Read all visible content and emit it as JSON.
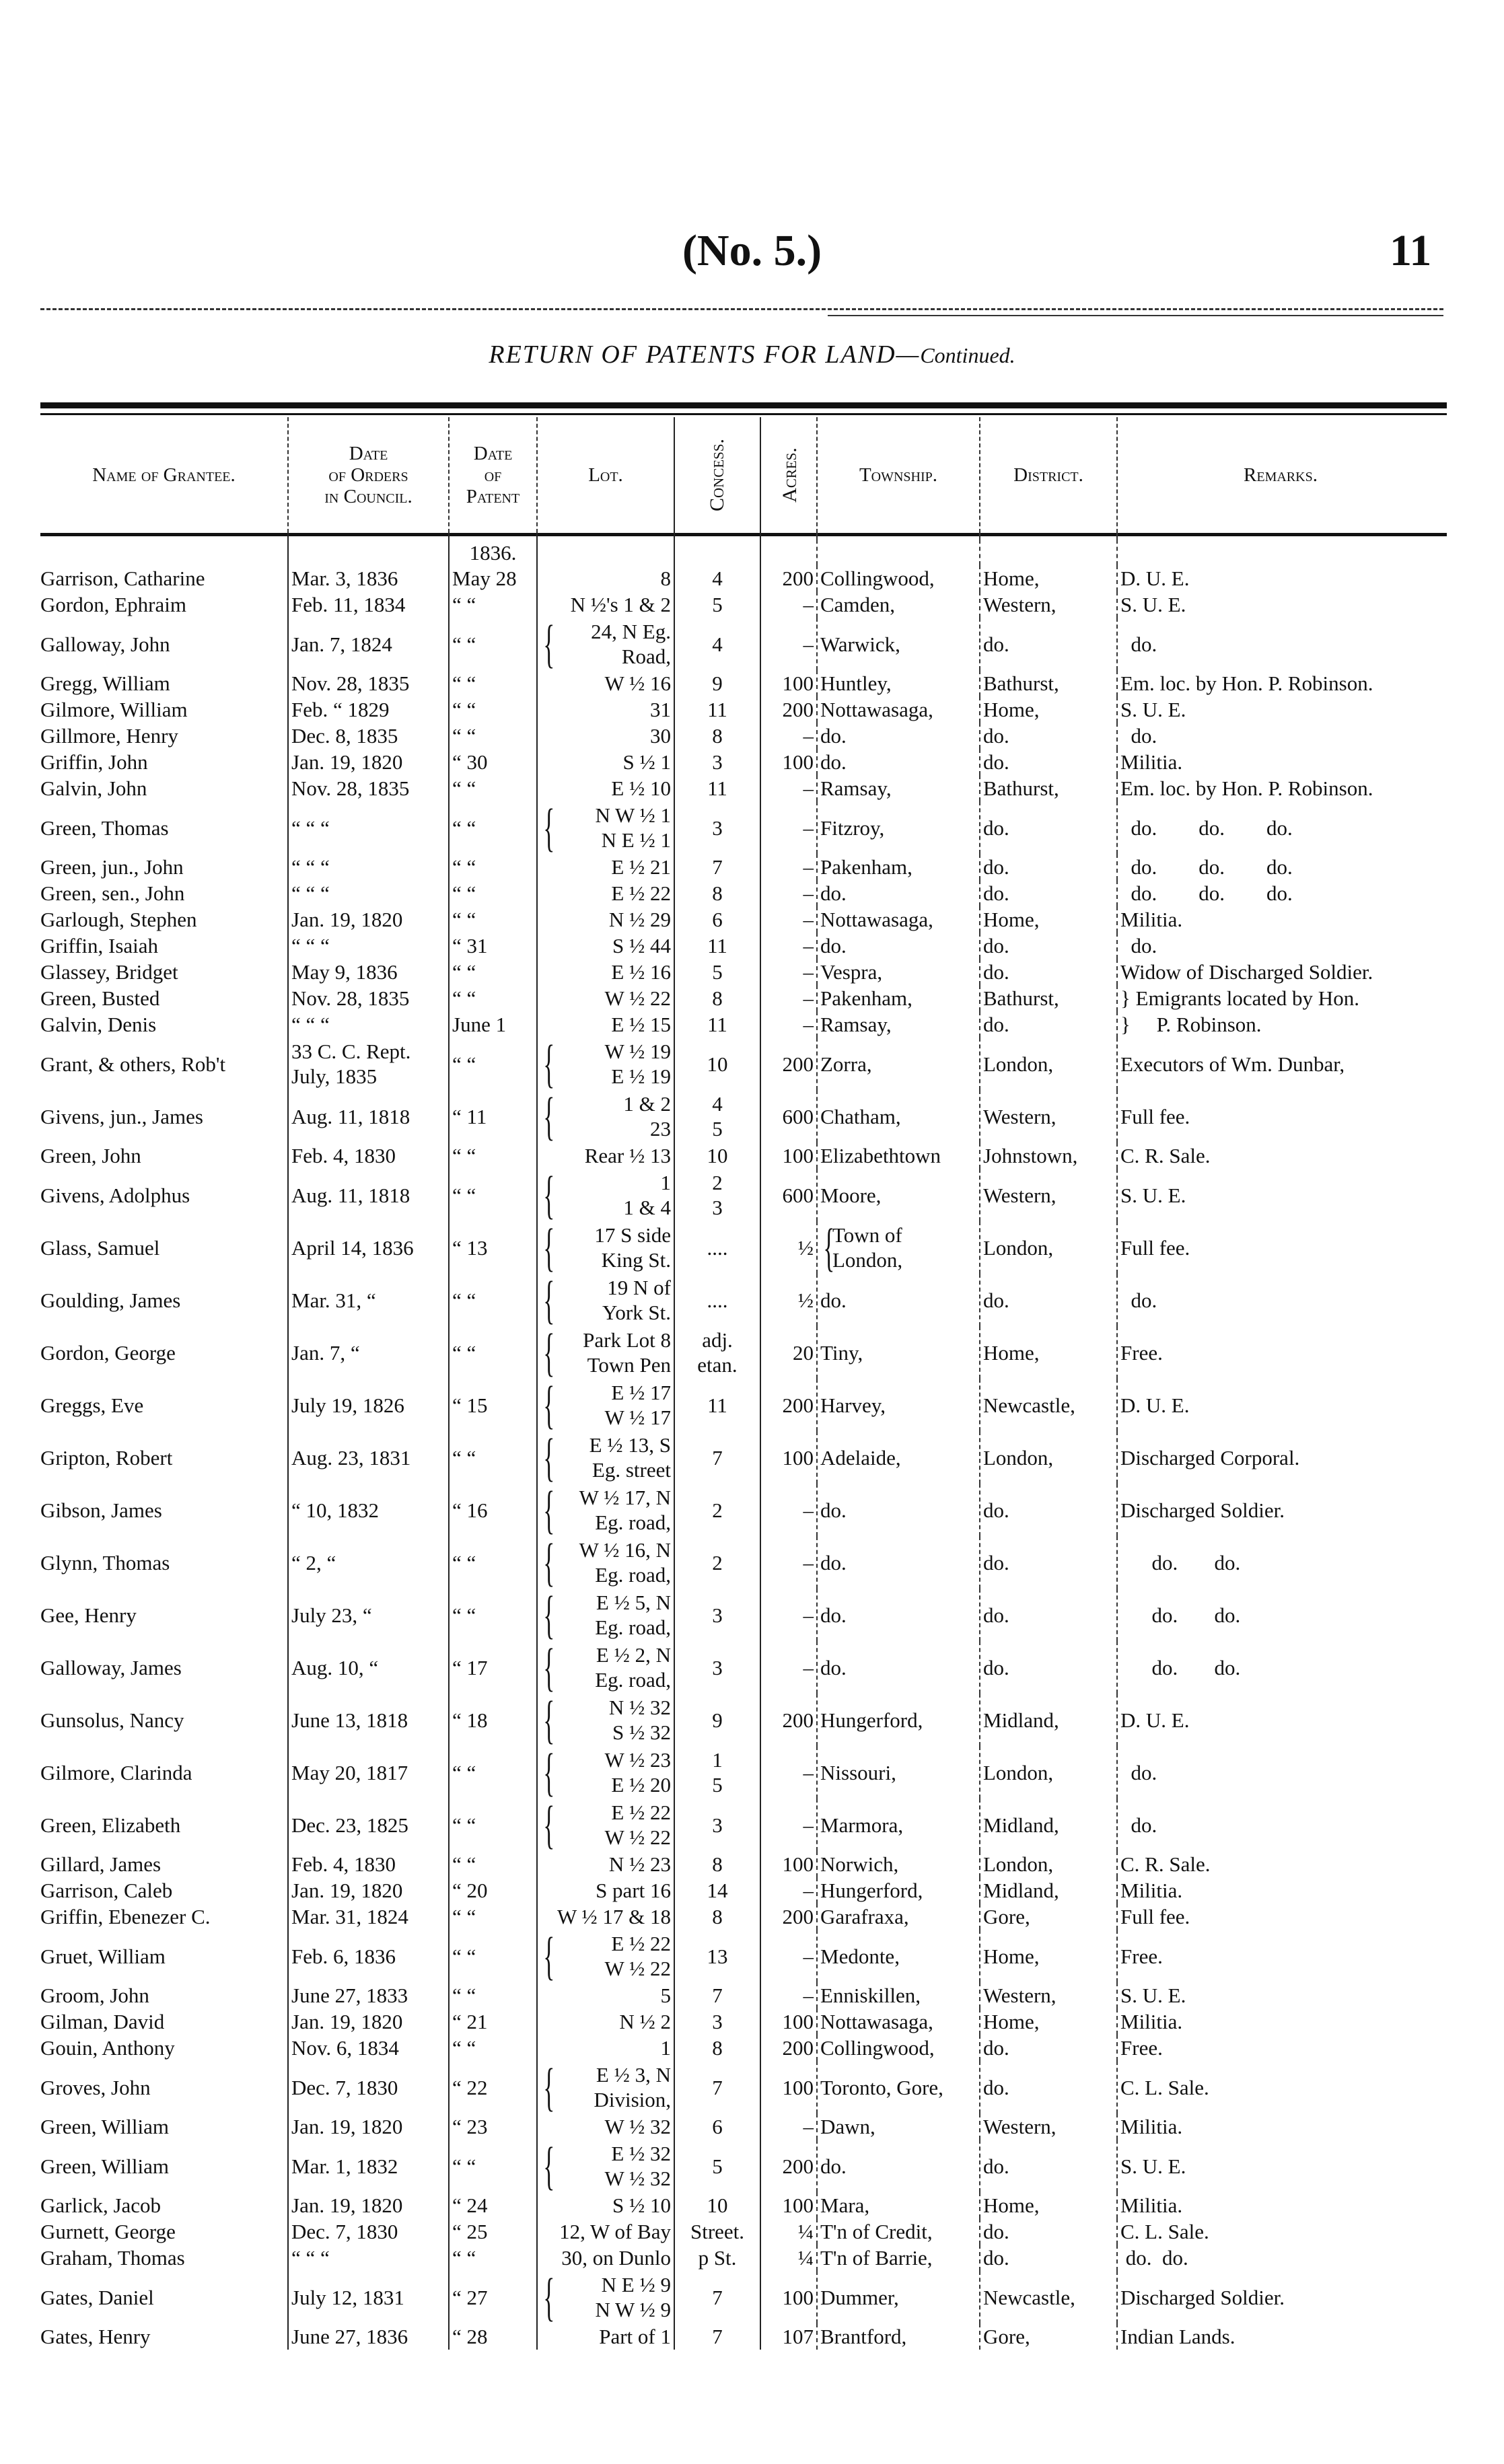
{
  "page": {
    "number_label": "(No. 5.)",
    "page_number": "11"
  },
  "title": {
    "main": "RETURN OF PATENTS FOR LAND—",
    "continued": "Continued."
  },
  "table": {
    "headers": {
      "name": "Name of Grantee.",
      "order": [
        "Date",
        "of Orders",
        "in Council."
      ],
      "patent": [
        "Date",
        "of",
        "Patent"
      ],
      "lot": "Lot.",
      "concession": "Concess.",
      "acres": "Acres.",
      "township": "Township.",
      "district": "District.",
      "remarks": "Remarks."
    },
    "patent_year": "1836.",
    "rows": [
      {
        "name": "Garrison, Catharine",
        "order": [
          "Mar.  3, 1836"
        ],
        "patent": "May 28",
        "lot": [
          "8"
        ],
        "conc": [
          "4"
        ],
        "acres": "200",
        "township": [
          "Collingwood,"
        ],
        "district": "Home,",
        "remarks": "D. U. E."
      },
      {
        "name": "Gordon, Ephraim",
        "order": [
          "Feb. 11, 1834"
        ],
        "patent": "“   “",
        "lot": [
          "N ½'s 1 & 2"
        ],
        "conc": [
          "5"
        ],
        "acres": "–",
        "township": [
          "Camden,"
        ],
        "district": "Western,",
        "remarks": "S. U. E."
      },
      {
        "name": "Galloway, John",
        "order": [
          "Jan.  7, 1824"
        ],
        "patent": "“   “",
        "lot": [
          "24, N Eg.",
          "Road,"
        ],
        "conc": [
          "4"
        ],
        "acres": "–",
        "township": [
          "Warwick,"
        ],
        "district": "do.",
        "remarks": "  do."
      },
      {
        "name": "Gregg, William",
        "order": [
          "Nov. 28, 1835"
        ],
        "patent": "“   “",
        "lot": [
          "W ½ 16"
        ],
        "conc": [
          "9"
        ],
        "acres": "100",
        "township": [
          "Huntley,"
        ],
        "district": "Bathurst,",
        "remarks": "Em. loc. by Hon. P. Robinson."
      },
      {
        "name": "Gilmore, William",
        "order": [
          "Feb.  “  1829"
        ],
        "patent": "“   “",
        "lot": [
          "31"
        ],
        "conc": [
          "11"
        ],
        "acres": "200",
        "township": [
          "Nottawasaga,"
        ],
        "district": "Home,",
        "remarks": "S. U. E."
      },
      {
        "name": "Gillmore, Henry",
        "order": [
          "Dec.  8, 1835"
        ],
        "patent": "“   “",
        "lot": [
          "30"
        ],
        "conc": [
          "8"
        ],
        "acres": "–",
        "township": [
          "do."
        ],
        "district": "do.",
        "remarks": "  do."
      },
      {
        "name": "Griffin, John",
        "order": [
          "Jan. 19, 1820"
        ],
        "patent": "“  30",
        "lot": [
          "S ½  1"
        ],
        "conc": [
          "3"
        ],
        "acres": "100",
        "township": [
          "do."
        ],
        "district": "do.",
        "remarks": "Militia."
      },
      {
        "name": "Galvin, John",
        "order": [
          "Nov. 28, 1835"
        ],
        "patent": "“   “",
        "lot": [
          "E ½ 10"
        ],
        "conc": [
          "11"
        ],
        "acres": "–",
        "township": [
          "Ramsay,"
        ],
        "district": "Bathurst,",
        "remarks": "Em. loc. by Hon. P. Robinson."
      },
      {
        "name": "Green, Thomas",
        "order": [
          "“   “   “"
        ],
        "patent": "“   “",
        "lot": [
          "N W ½ 1",
          "N E ½ 1"
        ],
        "conc": [
          "3"
        ],
        "acres": "–",
        "township": [
          "Fitzroy,"
        ],
        "district": "do.",
        "remarks": "  do.        do.        do."
      },
      {
        "name": "Green, jun., John",
        "order": [
          "“   “   “"
        ],
        "patent": "“   “",
        "lot": [
          "E ½ 21"
        ],
        "conc": [
          "7"
        ],
        "acres": "–",
        "township": [
          "Pakenham,"
        ],
        "district": "do.",
        "remarks": "  do.        do.        do."
      },
      {
        "name": "Green, sen., John",
        "order": [
          "“   “   “"
        ],
        "patent": "“   “",
        "lot": [
          "E ½ 22"
        ],
        "conc": [
          "8"
        ],
        "acres": "–",
        "township": [
          "do."
        ],
        "district": "do.",
        "remarks": "  do.        do.        do."
      },
      {
        "name": "Garlough, Stephen",
        "order": [
          "Jan. 19, 1820"
        ],
        "patent": "“   “",
        "lot": [
          "N ½ 29"
        ],
        "conc": [
          "6"
        ],
        "acres": "–",
        "township": [
          "Nottawasaga,"
        ],
        "district": "Home,",
        "remarks": "Militia."
      },
      {
        "name": "Griffin, Isaiah",
        "order": [
          "“   “   “"
        ],
        "patent": "“  31",
        "lot": [
          "S ½ 44"
        ],
        "conc": [
          "11"
        ],
        "acres": "–",
        "township": [
          "do."
        ],
        "district": "do.",
        "remarks": "  do."
      },
      {
        "name": "Glassey, Bridget",
        "order": [
          "May  9, 1836"
        ],
        "patent": "“   “",
        "lot": [
          "E ½ 16"
        ],
        "conc": [
          "5"
        ],
        "acres": "–",
        "township": [
          "Vespra,"
        ],
        "district": "do.",
        "remarks": "Widow of Discharged Soldier."
      },
      {
        "name": "Green, Busted",
        "order": [
          "Nov. 28, 1835"
        ],
        "patent": "“   “",
        "lot": [
          "W ½ 22"
        ],
        "conc": [
          "8"
        ],
        "acres": "–",
        "township": [
          "Pakenham,"
        ],
        "district": "Bathurst,",
        "remarks": "} Emigrants located by Hon."
      },
      {
        "name": "Galvin, Denis",
        "order": [
          "“   “   “"
        ],
        "patent": "June  1",
        "lot": [
          "E ½ 15"
        ],
        "conc": [
          "11"
        ],
        "acres": "–",
        "township": [
          "Ramsay,"
        ],
        "district": "do.",
        "remarks": "}     P. Robinson."
      },
      {
        "name": "Grant, & others, Rob't",
        "order": [
          "33 C. C. Rept.",
          "July, 1835"
        ],
        "patent": "“   “",
        "lot": [
          "W ½ 19",
          "E ½ 19"
        ],
        "conc": [
          "10"
        ],
        "acres": "200",
        "township": [
          "Zorra,"
        ],
        "district": "London,",
        "remarks": "Executors of Wm. Dunbar,"
      },
      {
        "name": "Givens, jun., James",
        "order": [
          "Aug. 11, 1818"
        ],
        "patent": "“  11",
        "lot": [
          "1 & 2",
          "23"
        ],
        "conc": [
          "4",
          "5"
        ],
        "acres": "600",
        "township": [
          "Chatham,"
        ],
        "district": "Western,",
        "remarks": "Full fee."
      },
      {
        "name": "Green, John",
        "order": [
          "Feb.  4, 1830"
        ],
        "patent": "“   “",
        "lot": [
          "Rear ½ 13"
        ],
        "conc": [
          "10"
        ],
        "acres": "100",
        "township": [
          "Elizabethtown"
        ],
        "district": "Johnstown,",
        "remarks": "C. R. Sale."
      },
      {
        "name": "Givens, Adolphus",
        "order": [
          "Aug. 11, 1818"
        ],
        "patent": "“   “",
        "lot": [
          "1",
          "1 & 4"
        ],
        "conc": [
          "2",
          "3"
        ],
        "acres": "600",
        "township": [
          "Moore,"
        ],
        "district": "Western,",
        "remarks": "S. U. E."
      },
      {
        "name": "Glass, Samuel",
        "order": [
          "April 14, 1836"
        ],
        "patent": "“  13",
        "lot": [
          "17 S side",
          "King St."
        ],
        "conc": [
          "...."
        ],
        "acres": "½",
        "township": [
          "Town of",
          "London,"
        ],
        "district": "London,",
        "remarks": "Full fee."
      },
      {
        "name": "Goulding, James",
        "order": [
          "Mar. 31,   “"
        ],
        "patent": "“   “",
        "lot": [
          "19 N of",
          "York St."
        ],
        "conc": [
          "...."
        ],
        "acres": "½",
        "township": [
          "do."
        ],
        "district": "do.",
        "remarks": "  do."
      },
      {
        "name": "Gordon, George",
        "order": [
          "Jan.  7,   “"
        ],
        "patent": "“   “",
        "lot": [
          "Park Lot 8",
          "Town Pen"
        ],
        "conc": [
          "adj.",
          "etan."
        ],
        "acres": "20",
        "township": [
          "Tiny,"
        ],
        "district": "Home,",
        "remarks": "Free."
      },
      {
        "name": "Greggs, Eve",
        "order": [
          "July 19, 1826"
        ],
        "patent": "“  15",
        "lot": [
          "E ½ 17",
          "W ½ 17"
        ],
        "conc": [
          "11"
        ],
        "acres": "200",
        "township": [
          "Harvey,"
        ],
        "district": "Newcastle,",
        "remarks": "D. U. E."
      },
      {
        "name": "Gripton, Robert",
        "order": [
          "Aug. 23, 1831"
        ],
        "patent": "“   “",
        "lot": [
          "E ½ 13, S",
          "Eg. street"
        ],
        "conc": [
          "7"
        ],
        "acres": "100",
        "township": [
          "Adelaide,"
        ],
        "district": "London,",
        "remarks": "Discharged Corporal."
      },
      {
        "name": "Gibson, James",
        "order": [
          "“  10, 1832"
        ],
        "patent": "“  16",
        "lot": [
          "W ½ 17, N",
          "Eg. road,"
        ],
        "conc": [
          "2"
        ],
        "acres": "–",
        "township": [
          "do."
        ],
        "district": "do.",
        "remarks": "Discharged Soldier."
      },
      {
        "name": "Glynn, Thomas",
        "order": [
          "“   2,   “"
        ],
        "patent": "“   “",
        "lot": [
          "W ½ 16, N",
          "Eg. road,"
        ],
        "conc": [
          "2"
        ],
        "acres": "–",
        "township": [
          "do."
        ],
        "district": "do.",
        "remarks": "      do.       do."
      },
      {
        "name": "Gee, Henry",
        "order": [
          "July 23,   “"
        ],
        "patent": "“   “",
        "lot": [
          "E ½ 5, N",
          "Eg. road,"
        ],
        "conc": [
          "3"
        ],
        "acres": "–",
        "township": [
          "do."
        ],
        "district": "do.",
        "remarks": "      do.       do."
      },
      {
        "name": "Galloway, James",
        "order": [
          "Aug. 10,   “"
        ],
        "patent": "“  17",
        "lot": [
          "E ½ 2, N",
          "Eg. road,"
        ],
        "conc": [
          "3"
        ],
        "acres": "–",
        "township": [
          "do."
        ],
        "district": "do.",
        "remarks": "      do.       do."
      },
      {
        "name": "Gunsolus, Nancy",
        "order": [
          "June 13, 1818"
        ],
        "patent": "“  18",
        "lot": [
          "N ½ 32",
          "S ½ 32"
        ],
        "conc": [
          "9"
        ],
        "acres": "200",
        "township": [
          "Hungerford,"
        ],
        "district": "Midland,",
        "remarks": "D. U. E."
      },
      {
        "name": "Gilmore, Clarinda",
        "order": [
          "May 20, 1817"
        ],
        "patent": "“   “",
        "lot": [
          "W ½ 23",
          "E ½ 20"
        ],
        "conc": [
          "1",
          "5"
        ],
        "acres": "–",
        "township": [
          "Nissouri,"
        ],
        "district": "London,",
        "remarks": "  do."
      },
      {
        "name": "Green, Elizabeth",
        "order": [
          "Dec. 23, 1825"
        ],
        "patent": "“   “",
        "lot": [
          "E ½ 22",
          "W ½ 22"
        ],
        "conc": [
          "3"
        ],
        "acres": "–",
        "township": [
          "Marmora,"
        ],
        "district": "Midland,",
        "remarks": "  do."
      },
      {
        "name": "Gillard, James",
        "order": [
          "Feb.  4, 1830"
        ],
        "patent": "“   “",
        "lot": [
          "N ½ 23"
        ],
        "conc": [
          "8"
        ],
        "acres": "100",
        "township": [
          "Norwich,"
        ],
        "district": "London,",
        "remarks": "C. R. Sale."
      },
      {
        "name": "Garrison, Caleb",
        "order": [
          "Jan. 19, 1820"
        ],
        "patent": "“  20",
        "lot": [
          "S part 16"
        ],
        "conc": [
          "14"
        ],
        "acres": "–",
        "township": [
          "Hungerford,"
        ],
        "district": "Midland,",
        "remarks": "Militia."
      },
      {
        "name": "Griffin, Ebenezer C.",
        "order": [
          "Mar. 31, 1824"
        ],
        "patent": "“   “",
        "lot": [
          "W ½ 17 & 18"
        ],
        "conc": [
          "8"
        ],
        "acres": "200",
        "township": [
          "Garafraxa,"
        ],
        "district": "Gore,",
        "remarks": "Full fee."
      },
      {
        "name": "Gruet, William",
        "order": [
          "Feb.  6, 1836"
        ],
        "patent": "“   “",
        "lot": [
          "E ½ 22",
          "W ½ 22"
        ],
        "conc": [
          "13"
        ],
        "acres": "–",
        "township": [
          "Medonte,"
        ],
        "district": "Home,",
        "remarks": "Free."
      },
      {
        "name": "Groom, John",
        "order": [
          "June 27, 1833"
        ],
        "patent": "“   “",
        "lot": [
          "5"
        ],
        "conc": [
          "7"
        ],
        "acres": "–",
        "township": [
          "Enniskillen,"
        ],
        "district": "Western,",
        "remarks": "S. U. E."
      },
      {
        "name": "Gilman, David",
        "order": [
          "Jan. 19, 1820"
        ],
        "patent": "“  21",
        "lot": [
          "N ½ 2"
        ],
        "conc": [
          "3"
        ],
        "acres": "100",
        "township": [
          "Nottawasaga,"
        ],
        "district": "Home,",
        "remarks": "Militia."
      },
      {
        "name": "Gouin, Anthony",
        "order": [
          "Nov.  6, 1834"
        ],
        "patent": "“   “",
        "lot": [
          "1"
        ],
        "conc": [
          "8"
        ],
        "acres": "200",
        "township": [
          "Collingwood,"
        ],
        "district": "do.",
        "remarks": "Free."
      },
      {
        "name": "Groves, John",
        "order": [
          "Dec.  7, 1830"
        ],
        "patent": "“  22",
        "lot": [
          "E ½ 3, N",
          "Division,"
        ],
        "conc": [
          "7"
        ],
        "acres": "100",
        "township": [
          "Toronto, Gore,"
        ],
        "district": "do.",
        "remarks": "C. L. Sale."
      },
      {
        "name": "Green, William",
        "order": [
          "Jan. 19, 1820"
        ],
        "patent": "“  23",
        "lot": [
          "W ½ 32"
        ],
        "conc": [
          "6"
        ],
        "acres": "–",
        "township": [
          "Dawn,"
        ],
        "district": "Western,",
        "remarks": "Militia."
      },
      {
        "name": "Green, William",
        "order": [
          "Mar.  1, 1832"
        ],
        "patent": "“   “",
        "lot": [
          "E ½ 32",
          "W ½ 32"
        ],
        "conc": [
          "5"
        ],
        "acres": "200",
        "township": [
          "do."
        ],
        "district": "do.",
        "remarks": "S. U. E."
      },
      {
        "name": "Garlick, Jacob",
        "order": [
          "Jan. 19, 1820"
        ],
        "patent": "“  24",
        "lot": [
          "S ½ 10"
        ],
        "conc": [
          "10"
        ],
        "acres": "100",
        "township": [
          "Mara,"
        ],
        "district": "Home,",
        "remarks": "Militia."
      },
      {
        "name": "Gurnett, George",
        "order": [
          "Dec.  7, 1830"
        ],
        "patent": "“  25",
        "lot": [
          "12, W of Bay"
        ],
        "conc": [
          "Street."
        ],
        "acres": "¼",
        "township": [
          "T'n of Credit,"
        ],
        "district": "do.",
        "remarks": "C. L. Sale."
      },
      {
        "name": "Graham, Thomas",
        "order": [
          "“   “   “"
        ],
        "patent": "“   “",
        "lot": [
          "30, on Dunlo"
        ],
        "conc": [
          "p St."
        ],
        "acres": "¼",
        "township": [
          "T'n of Barrie,"
        ],
        "district": "do.",
        "remarks": " do.  do."
      },
      {
        "name": "Gates, Daniel",
        "order": [
          "July 12, 1831"
        ],
        "patent": "“  27",
        "lot": [
          "N E ½ 9",
          "N W ½ 9"
        ],
        "conc": [
          "7"
        ],
        "acres": "100",
        "township": [
          "Dummer,"
        ],
        "district": "Newcastle,",
        "remarks": "Discharged Soldier."
      },
      {
        "name": "Gates, Henry",
        "order": [
          "June 27, 1836"
        ],
        "patent": "“  28",
        "lot": [
          "Part of 1"
        ],
        "conc": [
          "7"
        ],
        "acres": "107",
        "township": [
          "Brantford,"
        ],
        "district": "Gore,",
        "remarks": "Indian Lands."
      }
    ]
  }
}
